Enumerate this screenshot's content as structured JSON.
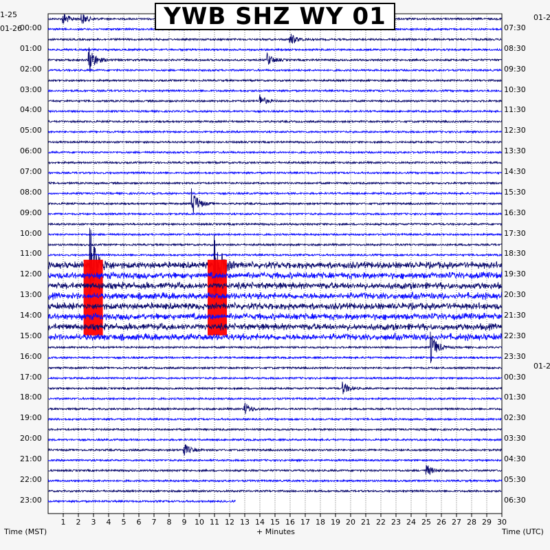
{
  "title": "YWB SHZ WY 01",
  "left_date_prev": "1-25",
  "left_date": "01-26",
  "right_date_top": "01-2",
  "right_date_mid": "01-2",
  "xlabel_left": "Time (MST)",
  "xlabel_center": "+ Minutes",
  "xlabel_right": "Time (UTC)",
  "colors": {
    "trace_dark": "#0a0a6e",
    "trace_bright": "#0a0aff",
    "clipped": "#ff0000",
    "grid": "#000000",
    "background": "#ffffff"
  },
  "chart_data": {
    "type": "helicorder",
    "x_ticks": [
      "1",
      "2",
      "3",
      "4",
      "5",
      "6",
      "7",
      "8",
      "9",
      "10",
      "11",
      "12",
      "13",
      "14",
      "15",
      "16",
      "17",
      "18",
      "19",
      "20",
      "21",
      "22",
      "23",
      "24",
      "25",
      "26",
      "27",
      "28",
      "29",
      "30"
    ],
    "xlim": [
      0,
      30
    ],
    "minutes_per_line": 30,
    "left_hour_labels": [
      "00:00",
      "01:00",
      "02:00",
      "03:00",
      "04:00",
      "05:00",
      "06:00",
      "07:00",
      "08:00",
      "09:00",
      "10:00",
      "11:00",
      "12:00",
      "13:00",
      "14:00",
      "15:00",
      "16:00",
      "17:00",
      "18:00",
      "19:00",
      "20:00",
      "21:00",
      "22:00",
      "23:00"
    ],
    "right_hour_labels": [
      "07:30",
      "08:30",
      "09:30",
      "10:30",
      "11:30",
      "12:30",
      "13:30",
      "14:30",
      "15:30",
      "16:30",
      "17:30",
      "18:30",
      "19:30",
      "20:30",
      "21:30",
      "22:30",
      "23:30",
      "00:30",
      "01:30",
      "02:30",
      "03:30",
      "04:30",
      "05:30",
      "06:30"
    ],
    "events": [
      {
        "hour": 0,
        "minute": 1.0,
        "amplitude": "medium"
      },
      {
        "hour": 0,
        "minute": 2.2,
        "amplitude": "medium"
      },
      {
        "hour": 1,
        "minute": 16.0,
        "amplitude": "medium"
      },
      {
        "hour": 2,
        "minute": 2.7,
        "amplitude": "large"
      },
      {
        "hour": 2,
        "minute": 14.5,
        "amplitude": "medium"
      },
      {
        "hour": 4,
        "minute": 14.0,
        "amplitude": "medium"
      },
      {
        "hour": 9,
        "minute": 9.5,
        "amplitude": "large"
      },
      {
        "hour": 12,
        "minute": 2.8,
        "amplitude": "saturated"
      },
      {
        "hour": 12,
        "minute": 11.0,
        "amplitude": "saturated"
      },
      {
        "hour": 16,
        "minute": 25.3,
        "amplitude": "large"
      },
      {
        "hour": 18,
        "minute": 19.5,
        "amplitude": "medium"
      },
      {
        "hour": 19,
        "minute": 13.0,
        "amplitude": "medium"
      },
      {
        "hour": 21,
        "minute": 9.0,
        "amplitude": "medium"
      },
      {
        "hour": 22,
        "minute": 25.0,
        "amplitude": "medium"
      }
    ]
  }
}
